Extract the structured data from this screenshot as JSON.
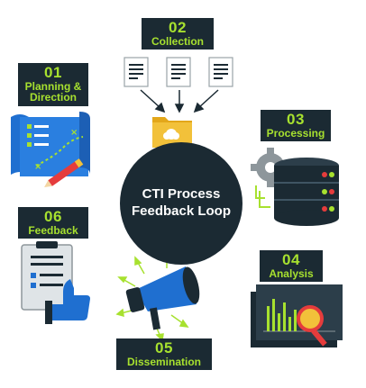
{
  "center": {
    "line1": "CTI Process",
    "line2": "Feedback Loop"
  },
  "steps": [
    {
      "num": "01",
      "label_lines": [
        "Planning &",
        "Direction"
      ],
      "icon": "map-strategy-icon"
    },
    {
      "num": "02",
      "label_lines": [
        "Collection"
      ],
      "icon": "folder-documents-icon"
    },
    {
      "num": "03",
      "label_lines": [
        "Processing"
      ],
      "icon": "gear-database-icon"
    },
    {
      "num": "04",
      "label_lines": [
        "Analysis"
      ],
      "icon": "chart-magnifier-icon"
    },
    {
      "num": "05",
      "label_lines": [
        "Dissemination"
      ],
      "icon": "megaphone-icon"
    },
    {
      "num": "06",
      "label_lines": [
        "Feedback"
      ],
      "icon": "clipboard-thumbs-up-icon"
    }
  ],
  "colors": {
    "navy": "#1b2a33",
    "green": "#a7e12f",
    "blue": "#1f6fd0",
    "red": "#e53c3c"
  }
}
